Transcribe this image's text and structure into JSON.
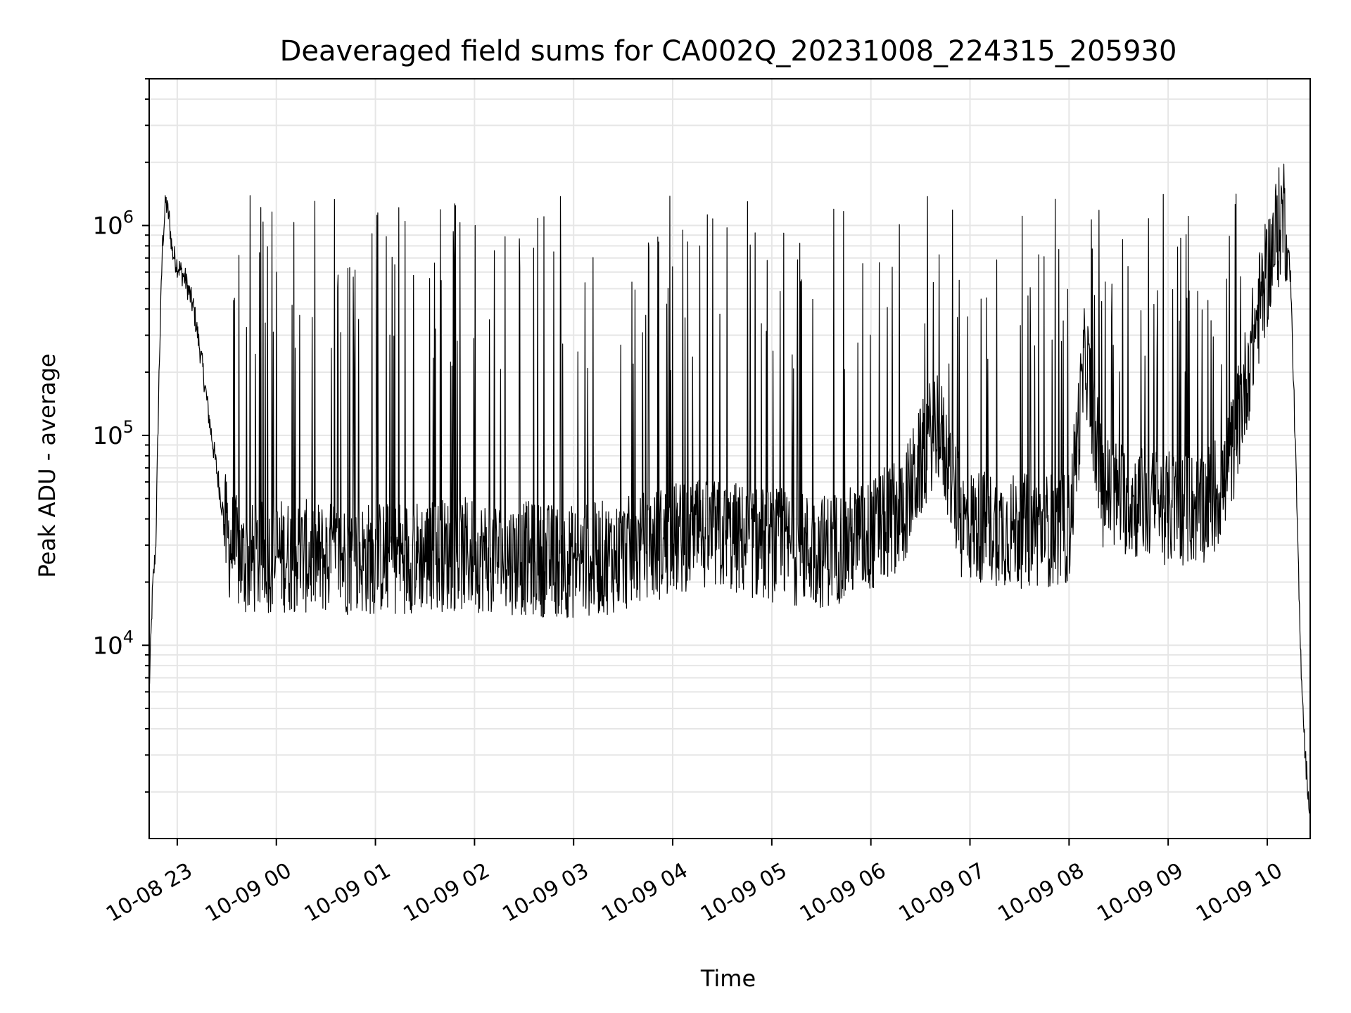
{
  "chart_data": {
    "type": "line",
    "title": "Deaveraged field sums for CA002Q_20231008_224315_205930",
    "xlabel": "Time",
    "ylabel": "Peak ADU - average",
    "yscale": "log",
    "ylim": [
      1200,
      5000000
    ],
    "xlim": [
      "2023-10-08 22:43",
      "2023-10-09 10:26"
    ],
    "grid": true,
    "line_color": "#000000",
    "x_ticks": [
      {
        "t": "2023-10-08 23:00",
        "label": "10-08 23"
      },
      {
        "t": "2023-10-09 00:00",
        "label": "10-09 00"
      },
      {
        "t": "2023-10-09 01:00",
        "label": "10-09 01"
      },
      {
        "t": "2023-10-09 02:00",
        "label": "10-09 02"
      },
      {
        "t": "2023-10-09 03:00",
        "label": "10-09 03"
      },
      {
        "t": "2023-10-09 04:00",
        "label": "10-09 04"
      },
      {
        "t": "2023-10-09 05:00",
        "label": "10-09 05"
      },
      {
        "t": "2023-10-09 06:00",
        "label": "10-09 06"
      },
      {
        "t": "2023-10-09 07:00",
        "label": "10-09 07"
      },
      {
        "t": "2023-10-09 08:00",
        "label": "10-09 08"
      },
      {
        "t": "2023-10-09 09:00",
        "label": "10-09 09"
      },
      {
        "t": "2023-10-09 10:00",
        "label": "10-09 10"
      }
    ],
    "y_ticks": [
      {
        "value": 10000,
        "base": "10",
        "exp": "4"
      },
      {
        "value": 100000,
        "base": "10",
        "exp": "5"
      },
      {
        "value": 1000000,
        "base": "10",
        "exp": "6"
      }
    ],
    "series": [
      {
        "points": [
          [
            "2023-10-08 22:43",
            6000
          ],
          [
            "2023-10-08 22:45",
            18000
          ],
          [
            "2023-10-08 22:47",
            30000
          ],
          [
            "2023-10-08 22:49",
            200000
          ],
          [
            "2023-10-08 22:51",
            800000
          ],
          [
            "2023-10-08 22:53",
            1300000
          ],
          [
            "2023-10-08 22:55",
            1100000
          ],
          [
            "2023-10-08 22:57",
            750000
          ],
          [
            "2023-10-08 23:00",
            650000
          ],
          [
            "2023-10-08 23:05",
            550000
          ],
          [
            "2023-10-08 23:10",
            400000
          ],
          [
            "2023-10-08 23:15",
            220000
          ],
          [
            "2023-10-08 23:20",
            110000
          ],
          [
            "2023-10-08 23:25",
            60000
          ],
          [
            "2023-10-08 23:30",
            32000
          ],
          [
            "2023-10-08 23:40",
            25000
          ],
          [
            "2023-10-08 23:50",
            26000
          ],
          [
            "2023-10-09 00:00",
            27000
          ],
          [
            "2023-10-09 00:30",
            26000
          ],
          [
            "2023-10-09 01:00",
            26000
          ],
          [
            "2023-10-09 01:30",
            27000
          ],
          [
            "2023-10-09 02:00",
            27000
          ],
          [
            "2023-10-09 02:30",
            26000
          ],
          [
            "2023-10-09 03:00",
            25000
          ],
          [
            "2023-10-09 03:30",
            27000
          ],
          [
            "2023-10-09 04:00",
            32000
          ],
          [
            "2023-10-09 04:30",
            33000
          ],
          [
            "2023-10-09 05:00",
            30000
          ],
          [
            "2023-10-09 05:30",
            28000
          ],
          [
            "2023-10-09 06:00",
            33000
          ],
          [
            "2023-10-09 06:20",
            45000
          ],
          [
            "2023-10-09 06:40",
            120000
          ],
          [
            "2023-10-09 06:55",
            38000
          ],
          [
            "2023-10-09 07:30",
            35000
          ],
          [
            "2023-10-09 08:00",
            36000
          ],
          [
            "2023-10-09 08:10",
            250000
          ],
          [
            "2023-10-09 08:20",
            55000
          ],
          [
            "2023-10-09 08:40",
            48000
          ],
          [
            "2023-10-09 09:00",
            45000
          ],
          [
            "2023-10-09 09:20",
            45000
          ],
          [
            "2023-10-09 09:35",
            60000
          ],
          [
            "2023-10-09 09:45",
            150000
          ],
          [
            "2023-10-09 09:55",
            400000
          ],
          [
            "2023-10-09 10:05",
            900000
          ],
          [
            "2023-10-09 10:10",
            1200000
          ],
          [
            "2023-10-09 10:14",
            600000
          ],
          [
            "2023-10-09 10:17",
            90000
          ],
          [
            "2023-10-09 10:20",
            10000
          ],
          [
            "2023-10-09 10:23",
            3000
          ],
          [
            "2023-10-09 10:26",
            1500
          ]
        ]
      }
    ]
  }
}
